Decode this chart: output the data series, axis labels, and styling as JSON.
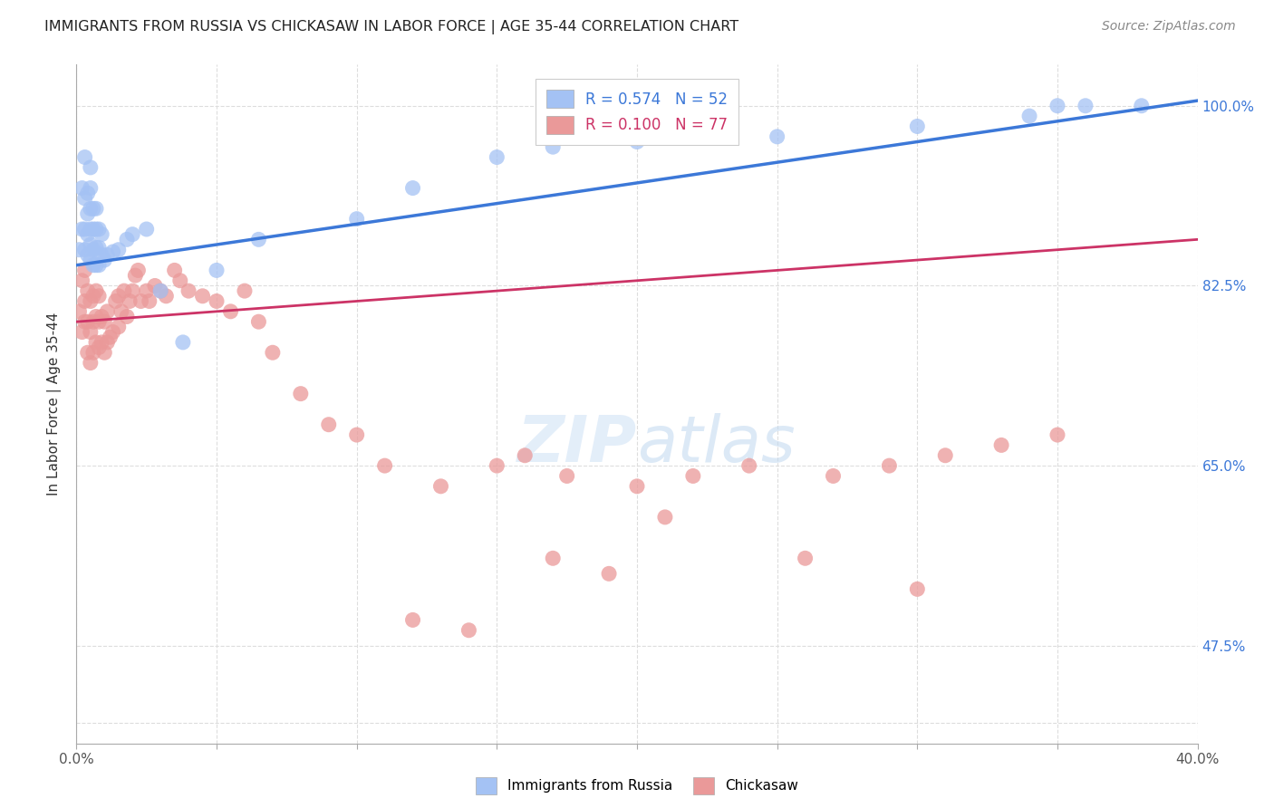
{
  "title": "IMMIGRANTS FROM RUSSIA VS CHICKASAW IN LABOR FORCE | AGE 35-44 CORRELATION CHART",
  "source": "Source: ZipAtlas.com",
  "ylabel": "In Labor Force | Age 35-44",
  "xlim": [
    0.0,
    0.4
  ],
  "ylim": [
    0.38,
    1.04
  ],
  "russia_R": 0.574,
  "russia_N": 52,
  "chickasaw_R": 0.1,
  "chickasaw_N": 77,
  "russia_color": "#a4c2f4",
  "chickasaw_color": "#ea9999",
  "russia_line_color": "#3c78d8",
  "chickasaw_line_color": "#cc3366",
  "legend_label_russia": "Immigrants from Russia",
  "legend_label_chickasaw": "Chickasaw",
  "russia_trend": [
    0.845,
    1.005
  ],
  "chickasaw_trend": [
    0.79,
    0.87
  ],
  "russia_x": [
    0.001,
    0.002,
    0.002,
    0.003,
    0.003,
    0.003,
    0.003,
    0.004,
    0.004,
    0.004,
    0.004,
    0.005,
    0.005,
    0.005,
    0.005,
    0.005,
    0.005,
    0.006,
    0.006,
    0.006,
    0.006,
    0.007,
    0.007,
    0.007,
    0.007,
    0.008,
    0.008,
    0.008,
    0.009,
    0.009,
    0.01,
    0.011,
    0.013,
    0.015,
    0.018,
    0.02,
    0.025,
    0.03,
    0.038,
    0.05,
    0.065,
    0.1,
    0.12,
    0.15,
    0.17,
    0.2,
    0.25,
    0.3,
    0.34,
    0.35,
    0.36,
    0.38
  ],
  "russia_y": [
    0.86,
    0.88,
    0.92,
    0.86,
    0.88,
    0.91,
    0.95,
    0.855,
    0.875,
    0.895,
    0.915,
    0.85,
    0.865,
    0.88,
    0.9,
    0.92,
    0.94,
    0.845,
    0.86,
    0.88,
    0.9,
    0.845,
    0.862,
    0.88,
    0.9,
    0.845,
    0.862,
    0.88,
    0.855,
    0.875,
    0.85,
    0.855,
    0.858,
    0.86,
    0.87,
    0.875,
    0.88,
    0.82,
    0.77,
    0.84,
    0.87,
    0.89,
    0.92,
    0.95,
    0.96,
    0.965,
    0.97,
    0.98,
    0.99,
    1.0,
    1.0,
    1.0
  ],
  "chickasaw_x": [
    0.001,
    0.002,
    0.002,
    0.003,
    0.003,
    0.003,
    0.004,
    0.004,
    0.004,
    0.005,
    0.005,
    0.005,
    0.006,
    0.006,
    0.006,
    0.007,
    0.007,
    0.007,
    0.008,
    0.008,
    0.008,
    0.009,
    0.009,
    0.01,
    0.01,
    0.011,
    0.011,
    0.012,
    0.013,
    0.014,
    0.015,
    0.015,
    0.016,
    0.017,
    0.018,
    0.019,
    0.02,
    0.021,
    0.022,
    0.023,
    0.025,
    0.026,
    0.028,
    0.03,
    0.032,
    0.035,
    0.037,
    0.04,
    0.045,
    0.05,
    0.055,
    0.06,
    0.065,
    0.07,
    0.08,
    0.09,
    0.1,
    0.11,
    0.13,
    0.15,
    0.16,
    0.175,
    0.2,
    0.22,
    0.24,
    0.27,
    0.29,
    0.31,
    0.33,
    0.35,
    0.17,
    0.19,
    0.12,
    0.14,
    0.21,
    0.26,
    0.3
  ],
  "chickasaw_y": [
    0.8,
    0.78,
    0.83,
    0.79,
    0.81,
    0.84,
    0.76,
    0.79,
    0.82,
    0.75,
    0.78,
    0.81,
    0.76,
    0.79,
    0.815,
    0.77,
    0.795,
    0.82,
    0.765,
    0.79,
    0.815,
    0.77,
    0.795,
    0.76,
    0.79,
    0.77,
    0.8,
    0.775,
    0.78,
    0.81,
    0.785,
    0.815,
    0.8,
    0.82,
    0.795,
    0.81,
    0.82,
    0.835,
    0.84,
    0.81,
    0.82,
    0.81,
    0.825,
    0.82,
    0.815,
    0.84,
    0.83,
    0.82,
    0.815,
    0.81,
    0.8,
    0.82,
    0.79,
    0.76,
    0.72,
    0.69,
    0.68,
    0.65,
    0.63,
    0.65,
    0.66,
    0.64,
    0.63,
    0.64,
    0.65,
    0.64,
    0.65,
    0.66,
    0.67,
    0.68,
    0.56,
    0.545,
    0.5,
    0.49,
    0.6,
    0.56,
    0.53
  ]
}
